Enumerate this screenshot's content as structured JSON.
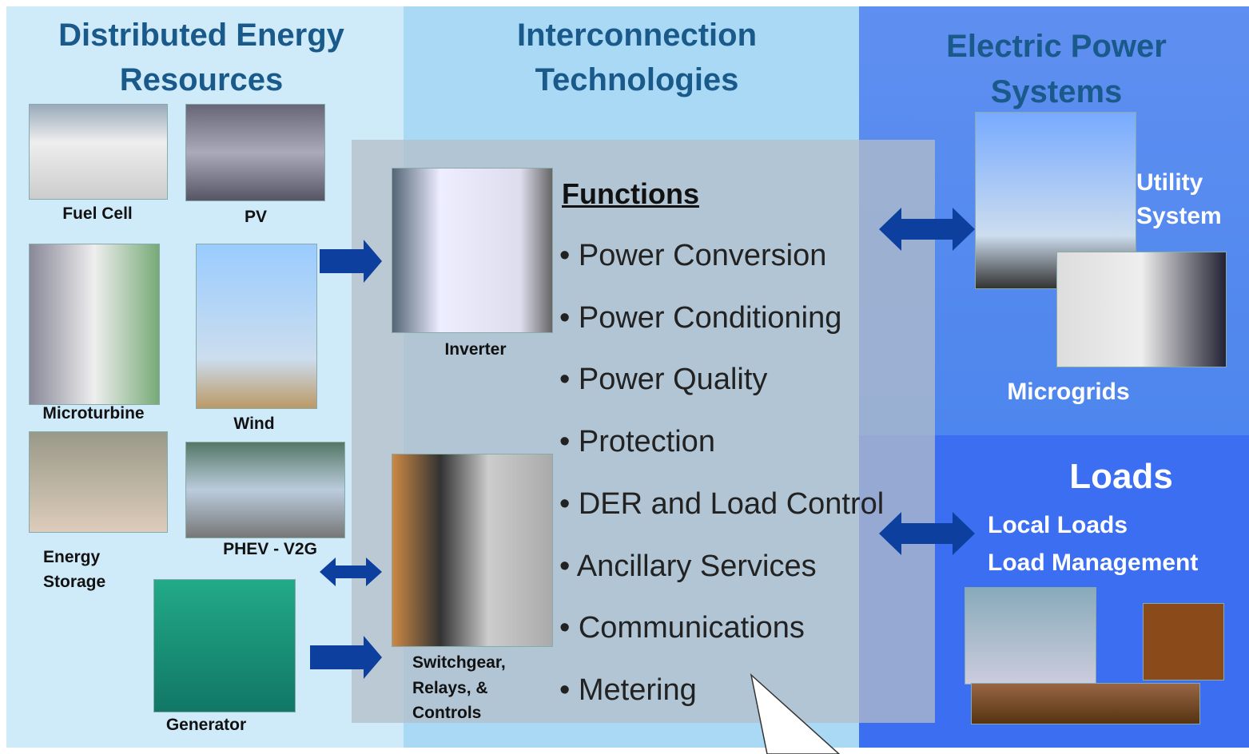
{
  "der": {
    "title": [
      "Distributed Energy",
      "Resources"
    ],
    "items": {
      "fuel_cell": "Fuel Cell",
      "pv": "PV",
      "microturbine": "Microturbine",
      "wind": "Wind",
      "energy_storage": [
        "Energy",
        "Storage"
      ],
      "phev": "PHEV - V2G",
      "generator": "Generator"
    }
  },
  "interconnection": {
    "title": [
      "Interconnection",
      "Technologies"
    ],
    "inverter": "Inverter",
    "switchgear": [
      "Switchgear,",
      "Relays, &",
      "Controls"
    ],
    "functions_heading": "Functions",
    "functions": [
      "• Power Conversion",
      "• Power Conditioning",
      "• Power Quality",
      "• Protection",
      "• DER and Load Control",
      "• Ancillary Services",
      "• Communications",
      "• Metering"
    ]
  },
  "eps": {
    "title": [
      "Electric Power",
      "Systems"
    ],
    "utility": [
      "Utility",
      "System"
    ],
    "microgrids": "Microgrids"
  },
  "loads": {
    "title": "Loads",
    "items": [
      "Local Loads",
      "Load Management"
    ]
  }
}
